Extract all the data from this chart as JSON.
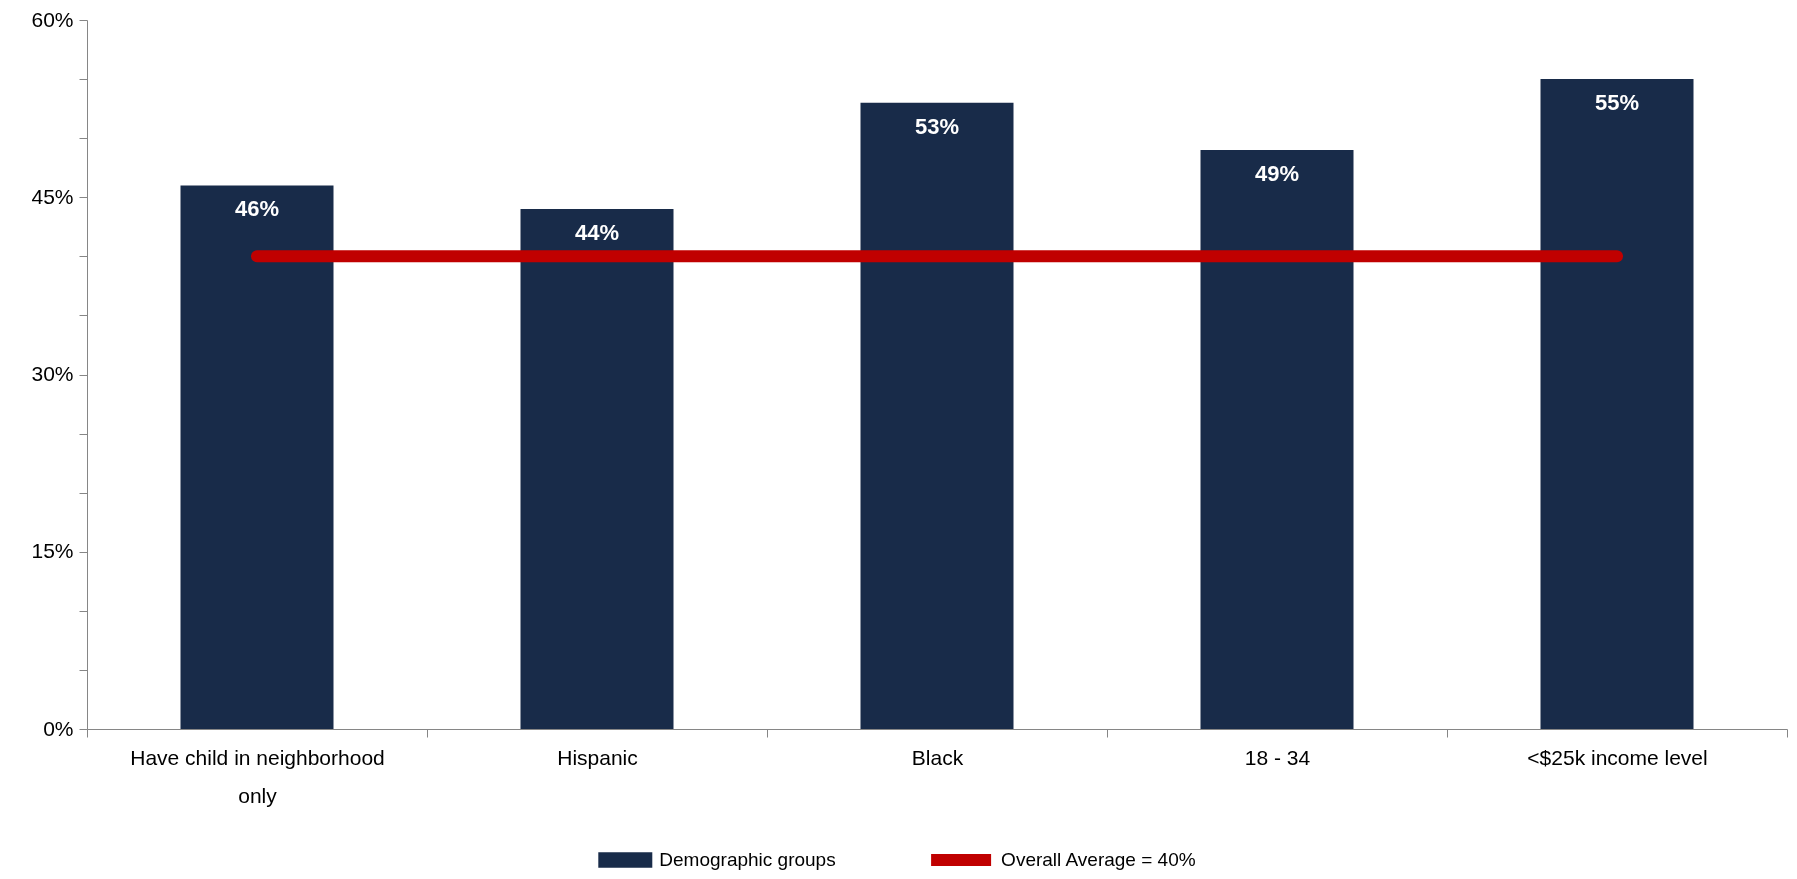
{
  "chart_data": {
    "type": "bar",
    "categories": [
      "Have child in neighborhood only",
      "Hispanic",
      "Black",
      "18 - 34",
      "<$25k income level"
    ],
    "series": [
      {
        "name": "Demographic groups",
        "color": "#182b49",
        "values": [
          46,
          44,
          53,
          49,
          55
        ],
        "value_labels": [
          "46%",
          "44%",
          "53%",
          "49%",
          "55%"
        ]
      },
      {
        "name": "Overall Average = 40%",
        "type": "line",
        "color": "#c00000",
        "values": [
          40,
          40,
          40,
          40,
          40
        ],
        "line_style": "solid"
      }
    ],
    "ylim": [
      0,
      60
    ],
    "yticks": [
      {
        "value": 0,
        "label": "0%"
      },
      {
        "value": 5,
        "label": null
      },
      {
        "value": 10,
        "label": null
      },
      {
        "value": 15,
        "label": "15%"
      },
      {
        "value": 20,
        "label": null
      },
      {
        "value": 25,
        "label": null
      },
      {
        "value": 30,
        "label": "30%"
      },
      {
        "value": 35,
        "label": null
      },
      {
        "value": 40,
        "label": null
      },
      {
        "value": 45,
        "label": "45%"
      },
      {
        "value": 50,
        "label": null
      },
      {
        "value": 55,
        "label": null
      },
      {
        "value": 60,
        "label": "60%"
      }
    ],
    "grid": false,
    "legend": "bottom"
  }
}
